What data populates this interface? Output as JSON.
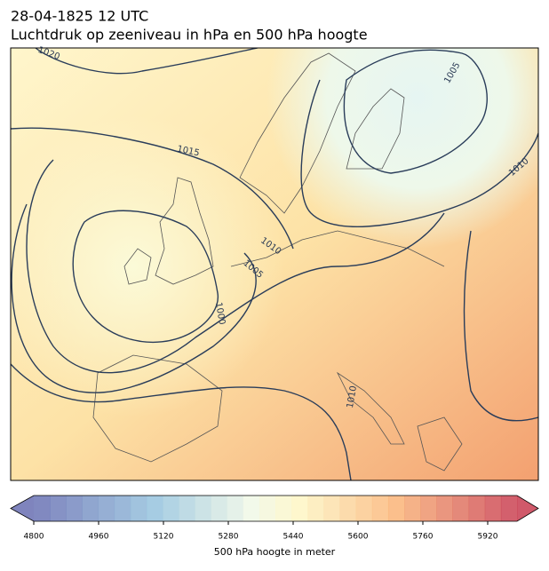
{
  "header": {
    "date": "28-04-1825 12 UTC",
    "title": "Luchtdruk op zeeniveau in hPa en 500 hPa hoogte"
  },
  "map": {
    "contour_labels": [
      "1020",
      "1015",
      "1010",
      "1005",
      "1000",
      "1005",
      "1010",
      "1010"
    ]
  },
  "colorbar": {
    "ticks": [
      "4800",
      "4960",
      "5120",
      "5280",
      "5440",
      "5600",
      "5760",
      "5920"
    ],
    "label": "500 hPa hoogte in meter"
  }
}
